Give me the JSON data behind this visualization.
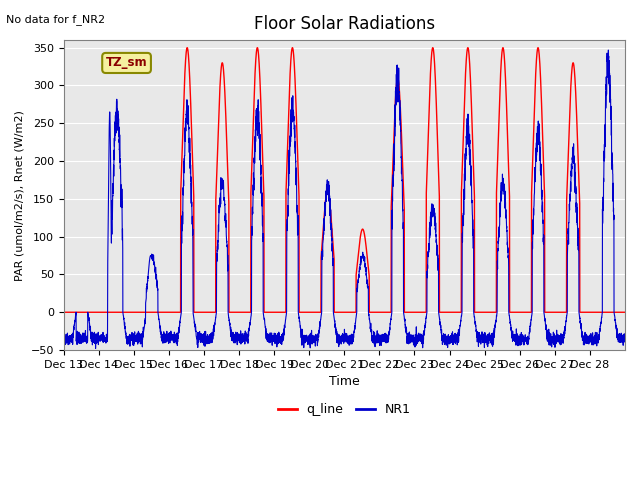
{
  "title": "Floor Solar Radiations",
  "top_left_text": "No data for f_NR2",
  "legend_label_red": "q_line",
  "legend_label_blue": "NR1",
  "legend_box_label": "TZ_sm",
  "xlabel": "Time",
  "ylabel": "PAR (umol/m2/s), Rnet (W/m2)",
  "ylim": [
    -50,
    360
  ],
  "yticks": [
    -50,
    0,
    50,
    100,
    150,
    200,
    250,
    300,
    350
  ],
  "xtick_labels": [
    "Dec 13",
    "Dec 14",
    "Dec 15",
    "Dec 16",
    "Dec 17",
    "Dec 18",
    "Dec 19",
    "Dec 20",
    "Dec 21",
    "Dec 22",
    "Dec 23",
    "Dec 24",
    "Dec 25",
    "Dec 26",
    "Dec 27",
    "Dec 28"
  ],
  "bg_color": "#e8e8e8",
  "line_color_red": "#ff0000",
  "line_color_blue": "#0000cc",
  "text_color": "#000000",
  "total_days": 16,
  "points_per_day": 288,
  "day_peaks_red": [
    0,
    0,
    0,
    350,
    330,
    350,
    350,
    160,
    110,
    310,
    350,
    350,
    350,
    350,
    330,
    0
  ],
  "day_peaks_blue": [
    0,
    265,
    75,
    260,
    170,
    265,
    270,
    165,
    75,
    310,
    140,
    240,
    170,
    240,
    205,
    330
  ]
}
